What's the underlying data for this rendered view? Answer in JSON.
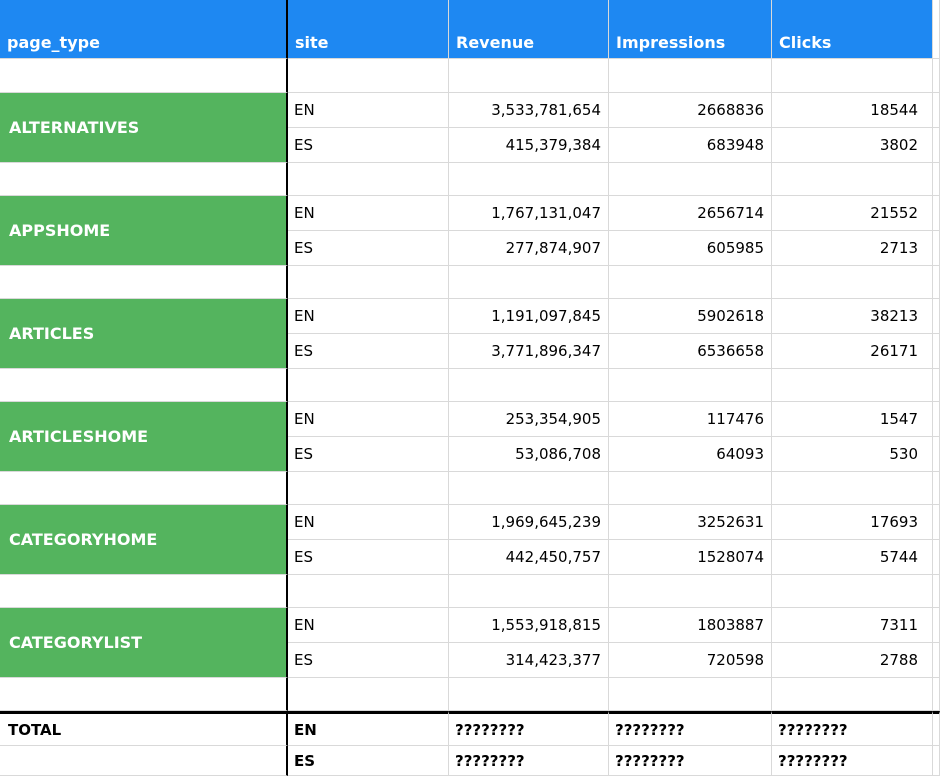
{
  "colors": {
    "header_bg": "#1E88F2",
    "group_bg": "#54B45E",
    "grid_line": "#D9D9D9",
    "divider": "#000000",
    "header_text": "#FFFFFF",
    "cell_text": "#000000"
  },
  "table": {
    "headers": {
      "page_type": "page_type",
      "site": "site",
      "revenue": "Revenue",
      "impressions": "Impressions",
      "clicks": "Clicks"
    },
    "groups": [
      {
        "page_type": "ALTERNATIVES",
        "rows": [
          {
            "site": "EN",
            "revenue": "3,533,781,654",
            "impressions": "2668836",
            "clicks": "18544"
          },
          {
            "site": "ES",
            "revenue": "415,379,384",
            "impressions": "683948",
            "clicks": "3802"
          }
        ]
      },
      {
        "page_type": "APPSHOME",
        "rows": [
          {
            "site": "EN",
            "revenue": "1,767,131,047",
            "impressions": "2656714",
            "clicks": "21552"
          },
          {
            "site": "ES",
            "revenue": "277,874,907",
            "impressions": "605985",
            "clicks": "2713"
          }
        ]
      },
      {
        "page_type": "ARTICLES",
        "rows": [
          {
            "site": "EN",
            "revenue": "1,191,097,845",
            "impressions": "5902618",
            "clicks": "38213"
          },
          {
            "site": "ES",
            "revenue": "3,771,896,347",
            "impressions": "6536658",
            "clicks": "26171"
          }
        ]
      },
      {
        "page_type": "ARTICLESHOME",
        "rows": [
          {
            "site": "EN",
            "revenue": "253,354,905",
            "impressions": "117476",
            "clicks": "1547"
          },
          {
            "site": "ES",
            "revenue": "53,086,708",
            "impressions": "64093",
            "clicks": "530"
          }
        ]
      },
      {
        "page_type": "CATEGORYHOME",
        "rows": [
          {
            "site": "EN",
            "revenue": "1,969,645,239",
            "impressions": "3252631",
            "clicks": "17693"
          },
          {
            "site": "ES",
            "revenue": "442,450,757",
            "impressions": "1528074",
            "clicks": "5744"
          }
        ]
      },
      {
        "page_type": "CATEGORYLIST",
        "rows": [
          {
            "site": "EN",
            "revenue": "1,553,918,815",
            "impressions": "1803887",
            "clicks": "7311"
          },
          {
            "site": "ES",
            "revenue": "314,423,377",
            "impressions": "720598",
            "clicks": "2788"
          }
        ]
      }
    ],
    "total": {
      "label": "TOTAL",
      "rows": [
        {
          "site": "EN",
          "revenue": "????????",
          "impressions": "????????",
          "clicks": "????????"
        },
        {
          "site": "ES",
          "revenue": "????????",
          "impressions": "????????",
          "clicks": "????????"
        }
      ]
    }
  }
}
